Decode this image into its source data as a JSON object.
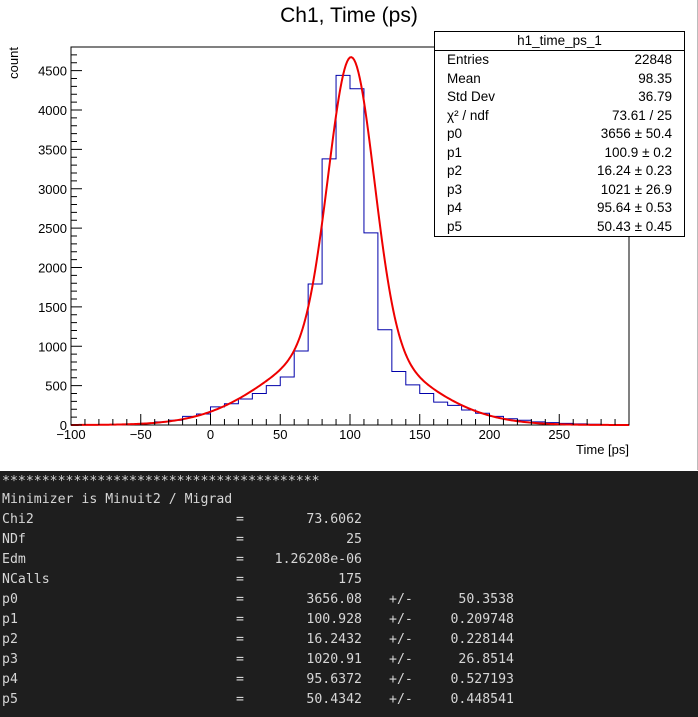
{
  "chart_data": {
    "type": "bar",
    "title": "Ch1, Time (ps)",
    "xlabel": "Time [ps]",
    "ylabel": "count",
    "xlim": [
      -100,
      300
    ],
    "ylim": [
      0,
      4800
    ],
    "xticks": [
      -100,
      -50,
      0,
      50,
      100,
      150,
      200,
      250
    ],
    "yticks": [
      0,
      500,
      1000,
      1500,
      2000,
      2500,
      3000,
      3500,
      4000,
      4500
    ],
    "bin_width": 10,
    "bin_edges_start": -100,
    "histogram_color": "#0000aa",
    "fit_color": "#ee0000",
    "values": [
      0,
      0,
      0,
      5,
      10,
      20,
      40,
      60,
      110,
      140,
      230,
      270,
      330,
      400,
      500,
      610,
      940,
      1790,
      3380,
      4440,
      4270,
      2440,
      1210,
      680,
      510,
      400,
      290,
      250,
      190,
      150,
      110,
      80,
      60,
      40,
      30,
      20,
      15,
      10,
      5,
      3
    ],
    "fit_params": [
      3656.08,
      100.928,
      16.2432,
      1020.91,
      95.6372,
      50.4342
    ]
  },
  "stats": {
    "title": "h1_time_ps_1",
    "rows": [
      {
        "k": "Entries",
        "v": "22848"
      },
      {
        "k": "Mean",
        "v": "98.35"
      },
      {
        "k": "Std Dev",
        "v": "36.79"
      },
      {
        "k": "χ² / ndf",
        "v": "73.61 / 25"
      },
      {
        "k": "p0",
        "v": "3656  ± 50.4"
      },
      {
        "k": "p1",
        "v": "100.9  ± 0.2"
      },
      {
        "k": "p2",
        "v": "16.24  ± 0.23"
      },
      {
        "k": "p3",
        "v": "1021  ± 26.9"
      },
      {
        "k": "p4",
        "v": "95.64  ± 0.53"
      },
      {
        "k": "p5",
        "v": "50.43  ± 0.45"
      }
    ]
  },
  "terminal": {
    "stars": "****************************************",
    "minimizer": "Minimizer is Minuit2 / Migrad",
    "rows": [
      {
        "name": "Chi2",
        "eq": "=",
        "val": "73.6062",
        "pm": "",
        "err": ""
      },
      {
        "name": "NDf",
        "eq": "=",
        "val": "25",
        "pm": "",
        "err": ""
      },
      {
        "name": "Edm",
        "eq": "=",
        "val": "1.26208e-06",
        "pm": "",
        "err": ""
      },
      {
        "name": "NCalls",
        "eq": "=",
        "val": "175",
        "pm": "",
        "err": ""
      },
      {
        "name": "p0",
        "eq": "=",
        "val": "3656.08",
        "pm": "+/-",
        "err": "50.3538"
      },
      {
        "name": "p1",
        "eq": "=",
        "val": "100.928",
        "pm": "+/-",
        "err": "0.209748"
      },
      {
        "name": "p2",
        "eq": "=",
        "val": "16.2432",
        "pm": "+/-",
        "err": "0.228144"
      },
      {
        "name": "p3",
        "eq": "=",
        "val": "1020.91",
        "pm": "+/-",
        "err": "26.8514"
      },
      {
        "name": "p4",
        "eq": "=",
        "val": "95.6372",
        "pm": "+/-",
        "err": "0.527193"
      },
      {
        "name": "p5",
        "eq": "=",
        "val": "50.4342",
        "pm": "+/-",
        "err": "0.448541"
      }
    ]
  }
}
